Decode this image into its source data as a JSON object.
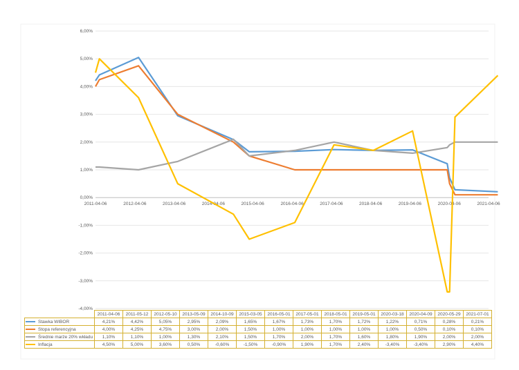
{
  "chart_data": {
    "type": "line",
    "title": "",
    "xlabel": "",
    "ylabel": "",
    "ylim": [
      -4,
      6
    ],
    "y_ticks": [
      "-4,00%",
      "-3,00%",
      "-2,00%",
      "-1,00%",
      "0,00%",
      "1,00%",
      "2,00%",
      "3,00%",
      "4,00%",
      "5,00%",
      "6,00%"
    ],
    "x_ticks": [
      "2011-04-06",
      "2012-04-06",
      "2013-04-06",
      "2014-04-06",
      "2015-04-06",
      "2016-04-06",
      "2017-04-06",
      "2018-04-06",
      "2019-04-06",
      "2020-04-06",
      "2021-04-06"
    ],
    "grid": true,
    "legend": "bottom-table",
    "x": [
      "2011-04-06",
      "2011-05-12",
      "2012-05-10",
      "2013-05-09",
      "2014-10-09",
      "2015-03-05",
      "2016-05-01",
      "2017-05-01",
      "2018-05-01",
      "2019-05-01",
      "2020-03-18",
      "2020-04-09",
      "2020-05-29",
      "2021-07-01"
    ],
    "series": [
      {
        "name": "Stawka WIBOR",
        "color": "#5b9bd5",
        "values": [
          4.21,
          4.42,
          5.05,
          2.95,
          2.09,
          1.65,
          1.67,
          1.73,
          1.7,
          1.72,
          1.22,
          0.71,
          0.28,
          0.21
        ],
        "labels": [
          "4,21%",
          "4,42%",
          "5,05%",
          "2,95%",
          "2,09%",
          "1,65%",
          "1,67%",
          "1,73%",
          "1,70%",
          "1,72%",
          "1,22%",
          "0,71%",
          "0,28%",
          "0,21%"
        ]
      },
      {
        "name": "Stopa referencyjna",
        "color": "#ed7d31",
        "values": [
          4.0,
          4.25,
          4.75,
          3.0,
          2.0,
          1.5,
          1.0,
          1.0,
          1.0,
          1.0,
          1.0,
          0.5,
          0.1,
          0.1
        ],
        "labels": [
          "4,00%",
          "4,25%",
          "4,75%",
          "3,00%",
          "2,00%",
          "1,50%",
          "1,00%",
          "1,00%",
          "1,00%",
          "1,00%",
          "1,00%",
          "0,50%",
          "0,10%",
          "0,10%"
        ]
      },
      {
        "name": "Średnie marże 20% wkładu",
        "color": "#a5a5a5",
        "values": [
          1.1,
          1.1,
          1.0,
          1.3,
          2.1,
          1.5,
          1.7,
          2.0,
          1.7,
          1.6,
          1.8,
          1.9,
          2.0,
          2.0
        ],
        "labels": [
          "1,10%",
          "1,10%",
          "1,00%",
          "1,30%",
          "2,10%",
          "1,50%",
          "1,70%",
          "2,00%",
          "1,70%",
          "1,60%",
          "1,80%",
          "1,90%",
          "2,00%",
          "2,00%"
        ]
      },
      {
        "name": "Inflacja",
        "color": "#ffc000",
        "values": [
          4.5,
          5.0,
          3.6,
          0.5,
          -0.6,
          -1.5,
          -0.9,
          1.9,
          1.7,
          2.4,
          -3.4,
          -3.4,
          2.9,
          4.4
        ],
        "labels": [
          "4,50%",
          "5,00%",
          "3,60%",
          "0,50%",
          "-0,60%",
          "-1,50%",
          "-0,90%",
          "1,90%",
          "1,70%",
          "2,40%",
          "-3,40%",
          "-3,40%",
          "2,90%",
          "4,40%"
        ]
      }
    ]
  }
}
